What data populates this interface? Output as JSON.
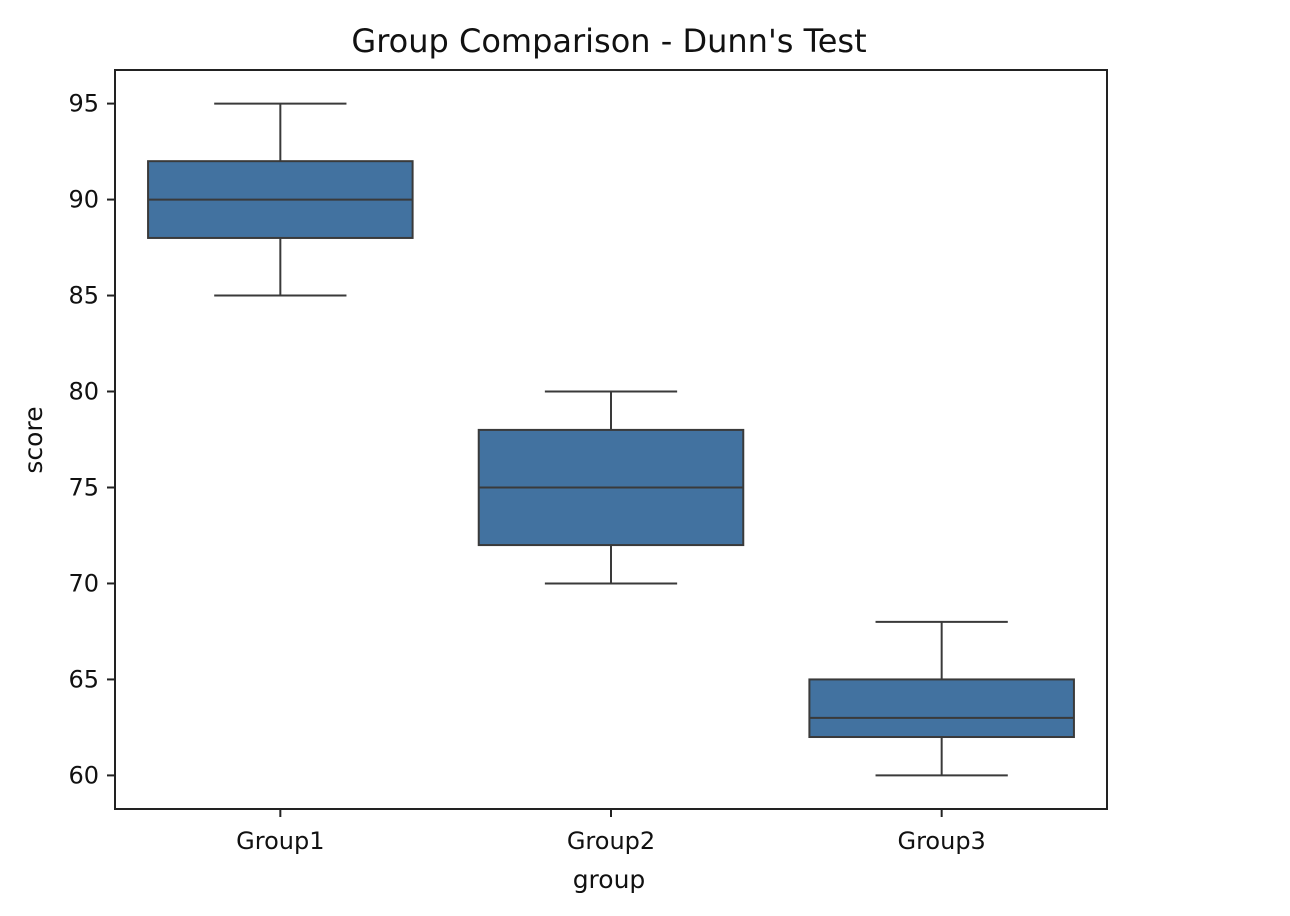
{
  "chart_data": {
    "type": "box",
    "title": "Group Comparison - Dunn's Test",
    "xlabel": "group",
    "ylabel": "score",
    "categories": [
      "Group1",
      "Group2",
      "Group3"
    ],
    "boxes": [
      {
        "category": "Group1",
        "min": 85,
        "q1": 88,
        "median": 90,
        "q3": 92,
        "max": 95
      },
      {
        "category": "Group2",
        "min": 70,
        "q1": 72,
        "median": 75,
        "q3": 78,
        "max": 80
      },
      {
        "category": "Group3",
        "min": 60,
        "q1": 62,
        "median": 63,
        "q3": 65,
        "max": 68
      }
    ],
    "ylim": [
      58.25,
      96.75
    ],
    "yticks": [
      60,
      65,
      70,
      75,
      80,
      85,
      90,
      95
    ],
    "grid": false,
    "box_color": "#4272a0",
    "line_color": "#3a3a3a"
  }
}
